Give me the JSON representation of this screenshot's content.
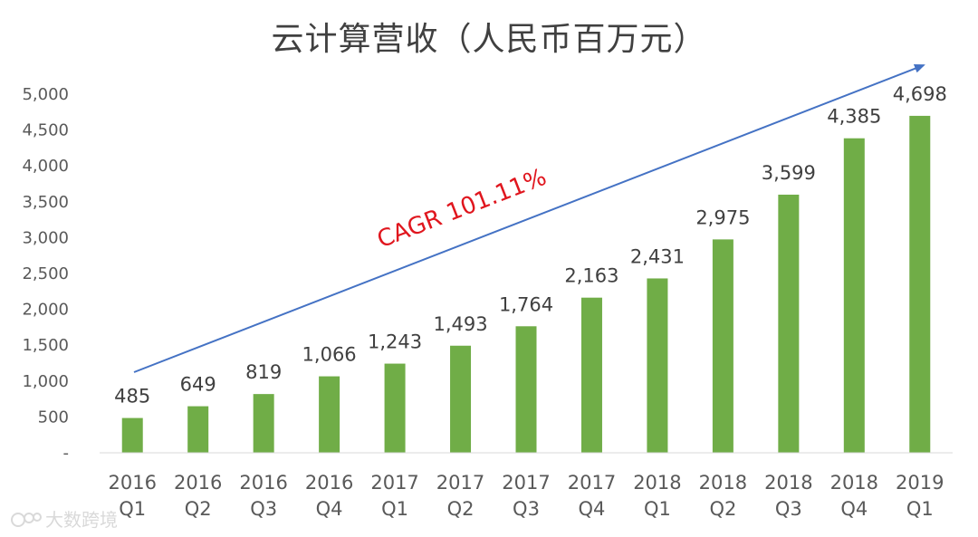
{
  "chart_data": {
    "type": "bar",
    "title": "云计算营收（人民币百万元）",
    "categories": [
      [
        "2016",
        "Q1"
      ],
      [
        "2016",
        "Q2"
      ],
      [
        "2016",
        "Q3"
      ],
      [
        "2016",
        "Q4"
      ],
      [
        "2017",
        "Q1"
      ],
      [
        "2017",
        "Q2"
      ],
      [
        "2017",
        "Q3"
      ],
      [
        "2017",
        "Q4"
      ],
      [
        "2018",
        "Q1"
      ],
      [
        "2018",
        "Q2"
      ],
      [
        "2018",
        "Q3"
      ],
      [
        "2018",
        "Q4"
      ],
      [
        "2019",
        "Q1"
      ]
    ],
    "values": [
      485,
      649,
      819,
      1066,
      1243,
      1493,
      1764,
      2163,
      2431,
      2975,
      3599,
      4385,
      4698
    ],
    "data_labels": [
      "485",
      "649",
      "819",
      "1,066",
      "1,243",
      "1,493",
      "1,764",
      "2,163",
      "2,431",
      "2,975",
      "3,599",
      "4,385",
      "4,698"
    ],
    "ylim": [
      0,
      5000
    ],
    "yticks": [
      0,
      500,
      1000,
      1500,
      2000,
      2500,
      3000,
      3500,
      4000,
      4500,
      5000
    ],
    "ytick_labels": [
      "-",
      "500",
      "1,000",
      "1,500",
      "2,000",
      "2,500",
      "3,000",
      "3,500",
      "4,000",
      "4,500",
      "5,000"
    ],
    "grid": false,
    "legend": "none",
    "bar_color": "#70ad47",
    "annotation": {
      "text": "CAGR 101.11%",
      "color": "#e0161e",
      "arrow_color": "#4472c4"
    }
  },
  "watermark": "大数跨境"
}
